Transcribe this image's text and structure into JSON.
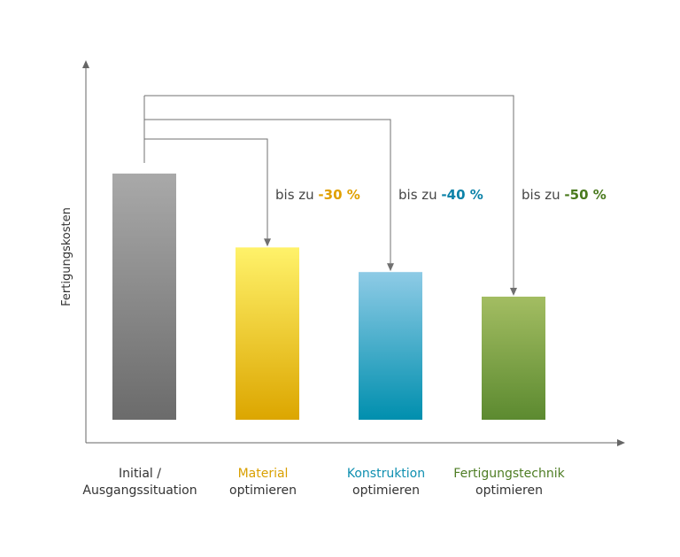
{
  "chart_data": {
    "type": "bar",
    "title": "",
    "xlabel": "",
    "ylabel": "Fertigungskosten",
    "ylim": [
      0,
      100
    ],
    "grid": false,
    "legend": "none",
    "categories": [
      {
        "line1": "Initial /",
        "line2": "Ausgangssituation",
        "color": "#333333"
      },
      {
        "line1": "Material",
        "line2": "optimieren",
        "color": "#d9a000"
      },
      {
        "line1": "Konstruktion",
        "line2": "optimieren",
        "color": "#0e8fb0"
      },
      {
        "line1": "Fertigungstechnik",
        "line2": "optimieren",
        "color": "#4e7d24"
      }
    ],
    "values": [
      100,
      70,
      60,
      50
    ],
    "bar_gradients": [
      [
        "#a9a9a9",
        "#6b6b6b"
      ],
      [
        "#fff26a",
        "#dca600"
      ],
      [
        "#8ecbe6",
        "#008fae"
      ],
      [
        "#a3bd62",
        "#5c8a30"
      ]
    ],
    "annotations": [
      {
        "target": 1,
        "prefix": "bis zu",
        "value": "-30 %",
        "color": "#e0a000"
      },
      {
        "target": 2,
        "prefix": "bis zu",
        "value": "-40 %",
        "color": "#0b82a8"
      },
      {
        "target": 3,
        "prefix": "bis zu",
        "value": "-50 %",
        "color": "#4a7a1e"
      }
    ],
    "axis_color": "#666666",
    "arrow_color": "#707070"
  }
}
